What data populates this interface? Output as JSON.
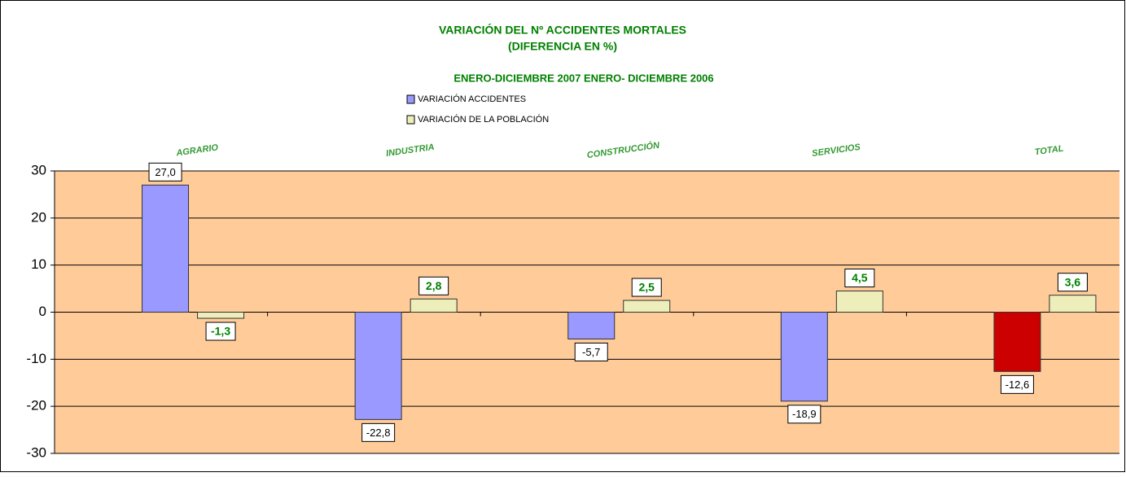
{
  "chart_data": {
    "type": "bar",
    "title": [
      "VARIACIÓN DEL Nº ACCIDENTES MORTALES",
      "(DIFERENCIA EN %)"
    ],
    "subtitle": "ENERO-DICIEMBRE 2007 ENERO- DICIEMBRE 2006",
    "categories": [
      "AGRARIO",
      "INDUSTRIA",
      "CONSTRUCCIÓN",
      "SERVICIOS",
      "TOTAL"
    ],
    "series": [
      {
        "name": "VARIACIÓN ACCIDENTES",
        "color": "#9999ff",
        "point_colors": [
          "#9999ff",
          "#9999ff",
          "#9999ff",
          "#9999ff",
          "#cc0000"
        ],
        "values": [
          27.0,
          -22.8,
          -5.7,
          -18.9,
          -12.6
        ],
        "value_labels": [
          "27,0",
          "-22,8",
          "-5,7",
          "-18,9",
          "-12,6"
        ]
      },
      {
        "name": "VARIACIÓN DE LA POBLACIÓN",
        "color": "#eeeebb",
        "values": [
          -1.3,
          2.8,
          2.5,
          4.5,
          3.6
        ],
        "value_labels": [
          "-1,3",
          "2,8",
          "2,5",
          "4,5",
          "3,6"
        ]
      }
    ],
    "ylim": [
      -30,
      30
    ],
    "yticks": [
      -30,
      -20,
      -10,
      0,
      10,
      20,
      30
    ],
    "grid": true,
    "plot_background": "#ffcc99"
  }
}
